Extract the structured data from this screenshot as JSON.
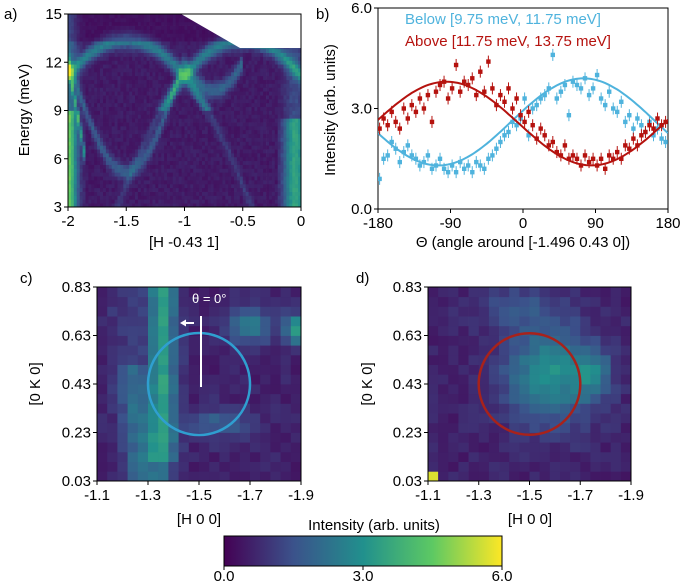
{
  "panels": {
    "a": "a)",
    "b": "b)",
    "c": "c)",
    "d": "d)"
  },
  "colors": {
    "below": "#4fb3dd",
    "above": "#b5120e",
    "circle_c": "#2f9fd0",
    "circle_d": "#a8221b",
    "colormap": [
      "#440154",
      "#3b528b",
      "#21908d",
      "#5dc963",
      "#fde725"
    ]
  },
  "chart_data": [
    {
      "id": "a",
      "type": "heatmap",
      "xlabel": "[H -0.43 1]",
      "ylabel": "Energy (meV)",
      "xlim": [
        -2,
        0
      ],
      "ylim": [
        3,
        15
      ],
      "xticks": [
        "-2",
        "-1.5",
        "-1",
        "-0.5",
        "0"
      ],
      "yticks": [
        "3",
        "6",
        "9",
        "12",
        "15"
      ],
      "features": {
        "upper_branches": "dispersive bands reaching about 13.5 meV near H = -1.5 and H = -0.5",
        "lower_arcs": "arcs dipping to about 5 meV near H = -0.75 and rising to 12 meV at H = -1 and -0.5",
        "intense_edges": "bright features at H = -2 and H = 0 between 4 and 8 meV"
      }
    },
    {
      "id": "b",
      "type": "scatter",
      "xlabel": "Θ (angle around [-1.496 0.43 0])",
      "ylabel": "Intensity (arb. units)",
      "xlim": [
        -180,
        180
      ],
      "ylim": [
        0,
        6
      ],
      "xticks": [
        "-180",
        "-90",
        "0",
        "90",
        "180"
      ],
      "yticks": [
        "0.0",
        "3.0",
        "6.0"
      ],
      "legend_position": "top",
      "series": [
        {
          "name": "Below [9.75 meV, 11.75 meV]",
          "fit": {
            "mean": 2.6,
            "amplitude": 1.3,
            "peak_deg": 75
          },
          "points": [
            [
              -178,
              0.9
            ],
            [
              -173,
              1.5
            ],
            [
              -168,
              1.6
            ],
            [
              -163,
              2.0
            ],
            [
              -158,
              1.8
            ],
            [
              -153,
              1.4
            ],
            [
              -148,
              1.7
            ],
            [
              -143,
              1.9
            ],
            [
              -138,
              1.6
            ],
            [
              -133,
              1.5
            ],
            [
              -128,
              1.3
            ],
            [
              -123,
              1.4
            ],
            [
              -118,
              1.6
            ],
            [
              -113,
              1.2
            ],
            [
              -108,
              1.3
            ],
            [
              -103,
              1.5
            ],
            [
              -98,
              1.2
            ],
            [
              -93,
              1.1
            ],
            [
              -88,
              1.3
            ],
            [
              -83,
              1.1
            ],
            [
              -78,
              1.4
            ],
            [
              -73,
              1.2
            ],
            [
              -68,
              1.3
            ],
            [
              -63,
              1.1
            ],
            [
              -58,
              1.4
            ],
            [
              -53,
              1.3
            ],
            [
              -48,
              1.2
            ],
            [
              -43,
              1.5
            ],
            [
              -38,
              1.6
            ],
            [
              -33,
              1.8
            ],
            [
              -28,
              2.0
            ],
            [
              -23,
              2.2
            ],
            [
              -18,
              2.3
            ],
            [
              -13,
              2.6
            ],
            [
              -8,
              2.5
            ],
            [
              -3,
              2.7
            ],
            [
              2,
              3.3
            ],
            [
              7,
              2.2
            ],
            [
              12,
              3.0
            ],
            [
              17,
              3.1
            ],
            [
              22,
              3.3
            ],
            [
              27,
              3.4
            ],
            [
              32,
              3.6
            ],
            [
              37,
              4.6
            ],
            [
              42,
              3.3
            ],
            [
              47,
              3.5
            ],
            [
              52,
              3.7
            ],
            [
              57,
              2.8
            ],
            [
              62,
              3.8
            ],
            [
              67,
              3.7
            ],
            [
              72,
              3.6
            ],
            [
              77,
              3.9
            ],
            [
              82,
              3.4
            ],
            [
              87,
              3.6
            ],
            [
              92,
              4.0
            ],
            [
              97,
              3.3
            ],
            [
              102,
              3.1
            ],
            [
              107,
              3.5
            ],
            [
              112,
              3.0
            ],
            [
              117,
              2.9
            ],
            [
              122,
              3.2
            ],
            [
              127,
              2.6
            ],
            [
              132,
              2.8
            ],
            [
              137,
              2.4
            ],
            [
              142,
              2.7
            ],
            [
              147,
              2.5
            ],
            [
              152,
              2.3
            ],
            [
              157,
              2.6
            ],
            [
              162,
              2.2
            ],
            [
              167,
              2.4
            ],
            [
              172,
              2.1
            ],
            [
              177,
              2.0
            ]
          ]
        },
        {
          "name": "Above [11.75 meV, 13.75 meV]",
          "fit": {
            "mean": 2.55,
            "amplitude": 1.25,
            "peak_deg": -95
          },
          "points": [
            [
              -178,
              2.4
            ],
            [
              -173,
              2.7
            ],
            [
              -168,
              2.5
            ],
            [
              -163,
              2.9
            ],
            [
              -158,
              2.6
            ],
            [
              -153,
              2.4
            ],
            [
              -148,
              3.0
            ],
            [
              -143,
              2.7
            ],
            [
              -138,
              3.1
            ],
            [
              -133,
              2.9
            ],
            [
              -128,
              3.3
            ],
            [
              -123,
              3.0
            ],
            [
              -118,
              3.4
            ],
            [
              -113,
              2.6
            ],
            [
              -108,
              3.5
            ],
            [
              -103,
              3.7
            ],
            [
              -98,
              3.8
            ],
            [
              -93,
              3.3
            ],
            [
              -88,
              3.6
            ],
            [
              -83,
              4.3
            ],
            [
              -78,
              3.5
            ],
            [
              -73,
              3.8
            ],
            [
              -68,
              3.7
            ],
            [
              -63,
              3.9
            ],
            [
              -58,
              3.4
            ],
            [
              -53,
              4.1
            ],
            [
              -48,
              3.5
            ],
            [
              -43,
              4.4
            ],
            [
              -38,
              3.6
            ],
            [
              -33,
              3.1
            ],
            [
              -28,
              3.4
            ],
            [
              -23,
              3.2
            ],
            [
              -18,
              3.6
            ],
            [
              -13,
              3.0
            ],
            [
              -8,
              3.3
            ],
            [
              -3,
              2.8
            ],
            [
              2,
              2.6
            ],
            [
              7,
              2.9
            ],
            [
              12,
              2.5
            ],
            [
              17,
              2.1
            ],
            [
              22,
              2.4
            ],
            [
              27,
              2.2
            ],
            [
              32,
              1.9
            ],
            [
              37,
              2.0
            ],
            [
              42,
              1.7
            ],
            [
              47,
              1.6
            ],
            [
              52,
              1.9
            ],
            [
              57,
              1.5
            ],
            [
              62,
              1.6
            ],
            [
              67,
              1.5
            ],
            [
              72,
              1.3
            ],
            [
              77,
              1.6
            ],
            [
              82,
              1.4
            ],
            [
              87,
              1.5
            ],
            [
              92,
              1.3
            ],
            [
              97,
              1.5
            ],
            [
              102,
              1.2
            ],
            [
              107,
              1.6
            ],
            [
              112,
              1.5
            ],
            [
              117,
              1.7
            ],
            [
              122,
              1.5
            ],
            [
              127,
              1.9
            ],
            [
              132,
              1.8
            ],
            [
              137,
              2.1
            ],
            [
              142,
              1.9
            ],
            [
              147,
              2.2
            ],
            [
              152,
              2.3
            ],
            [
              157,
              2.5
            ],
            [
              162,
              2.4
            ],
            [
              167,
              2.7
            ],
            [
              172,
              2.5
            ],
            [
              177,
              2.6
            ]
          ]
        }
      ]
    },
    {
      "id": "c",
      "type": "heatmap",
      "xlabel": "[H 0 0]",
      "ylabel": "[0 K 0]",
      "xlim": [
        -1.1,
        -1.9
      ],
      "ylim": [
        0.03,
        0.83
      ],
      "xticks": [
        "-1.1",
        "-1.3",
        "-1.5",
        "-1.7",
        "-1.9"
      ],
      "yticks": [
        "0.03",
        "0.23",
        "0.43",
        "0.63",
        "0.83"
      ],
      "annotation": "θ = 0°",
      "circle": {
        "center": [
          -1.5,
          0.43
        ],
        "radius": 0.2
      }
    },
    {
      "id": "d",
      "type": "heatmap",
      "xlabel": "[H 0 0]",
      "ylabel": "[0 K 0]",
      "xlim": [
        -1.1,
        -1.9
      ],
      "ylim": [
        0.03,
        0.83
      ],
      "xticks": [
        "-1.1",
        "-1.3",
        "-1.5",
        "-1.7",
        "-1.9"
      ],
      "yticks": [
        "0.03",
        "0.23",
        "0.43",
        "0.63",
        "0.83"
      ],
      "circle": {
        "center": [
          -1.5,
          0.43
        ],
        "radius": 0.2
      }
    }
  ],
  "colorbar": {
    "label": "Intensity (arb. units)",
    "range": [
      0,
      6
    ],
    "ticks": [
      "0.0",
      "3.0",
      "6.0"
    ]
  }
}
